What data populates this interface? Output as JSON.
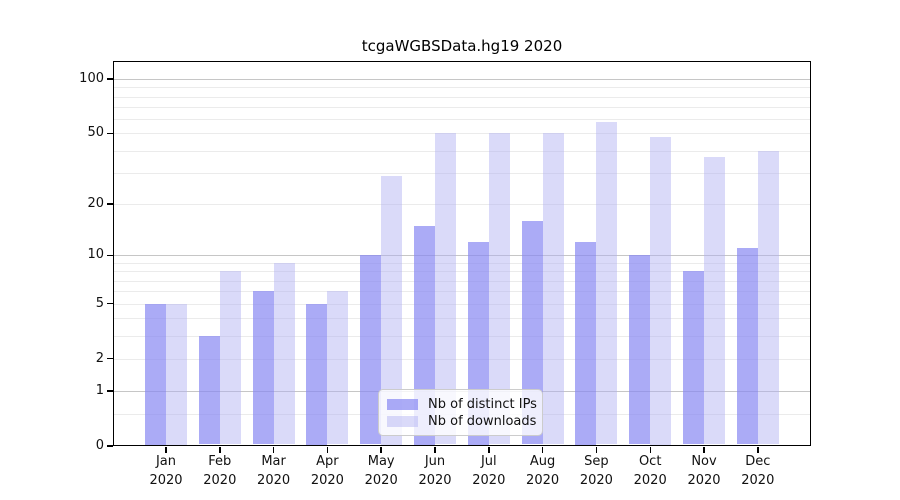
{
  "title": "tcgaWGBSData.hg19 2020",
  "chart_data": {
    "type": "bar",
    "title": "tcgaWGBSData.hg19 2020",
    "categories": [
      "Jan",
      "Feb",
      "Mar",
      "Apr",
      "May",
      "Jun",
      "Jul",
      "Aug",
      "Sep",
      "Oct",
      "Nov",
      "Dec"
    ],
    "year": "2020",
    "series": [
      {
        "name": "Nb of distinct IPs",
        "color": "rgba(135,135,242,0.70)",
        "values": [
          5,
          3,
          6,
          5,
          10,
          15,
          12,
          16,
          12,
          10,
          8,
          11
        ]
      },
      {
        "name": "Nb of downloads",
        "color": "rgba(173,173,242,0.45)",
        "values": [
          5,
          8,
          9,
          6,
          29,
          50,
          50,
          50,
          58,
          48,
          37,
          40
        ]
      }
    ],
    "xlabel": "",
    "ylabel": "",
    "yscale": "log1p",
    "ylim": [
      0,
      126
    ],
    "yticks": [
      100,
      50,
      20,
      10,
      5,
      2,
      1,
      0
    ],
    "major_gridlines": [
      1,
      10,
      100
    ],
    "minor_gridlines": [
      0.5,
      2,
      3,
      4,
      5,
      6,
      7,
      8,
      9,
      20,
      30,
      40,
      50,
      60,
      70,
      80,
      90
    ],
    "grid": true,
    "legend_position": "lower center-right inside",
    "colors": {
      "major_grid": "#c6c6c6",
      "minor_grid": "#ebebeb",
      "axis": "#000000",
      "text": "#111111",
      "background": "#ffffff"
    }
  }
}
